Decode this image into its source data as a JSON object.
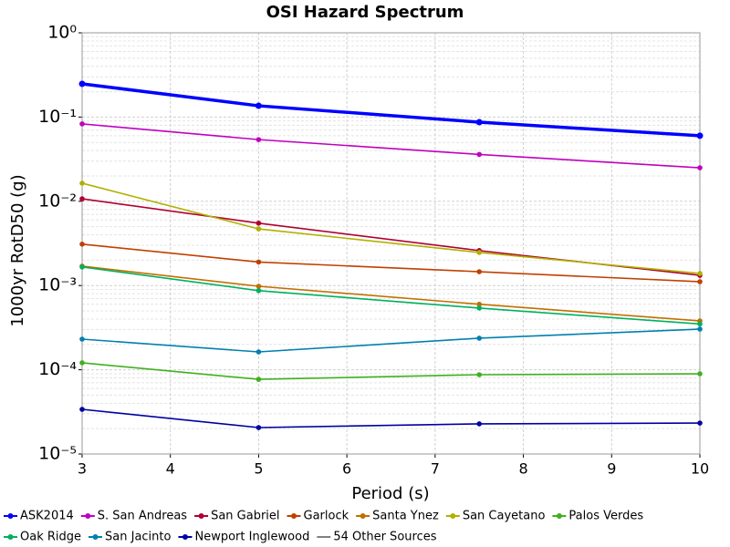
{
  "chart_data": {
    "type": "line",
    "title": "OSI Hazard Spectrum",
    "x_label": "Period (s)",
    "y_label": "1000yr RotD50 (g)",
    "y_log": true,
    "grid": true,
    "xlim": [
      3,
      10
    ],
    "xticks": [
      3,
      4,
      5,
      6,
      7,
      8,
      9,
      10
    ],
    "ylim": [
      1e-05,
      1
    ],
    "yticks": [
      {
        "value": 1,
        "label": "10⁰"
      },
      {
        "value": 0.1,
        "label": "10⁻¹"
      },
      {
        "value": 0.01,
        "label": "10⁻²"
      },
      {
        "value": 0.001,
        "label": "10⁻³"
      },
      {
        "value": 0.0001,
        "label": "10⁻⁴"
      },
      {
        "value": 1e-05,
        "label": "10⁻⁵"
      }
    ],
    "x": [
      3,
      5,
      7.5,
      10
    ],
    "series": [
      {
        "name": "ASK2014",
        "color": "#0000ff",
        "values": [
          0.248,
          0.136,
          0.087,
          0.06
        ]
      },
      {
        "name": "S. San Andreas",
        "color": "#c000c0",
        "values": [
          0.083,
          0.054,
          0.036,
          0.025
        ]
      },
      {
        "name": "San Gabriel",
        "color": "#b00030",
        "values": [
          0.0107,
          0.0055,
          0.0026,
          0.00132
        ]
      },
      {
        "name": "Garlock",
        "color": "#c04000",
        "values": [
          0.0031,
          0.0019,
          0.00146,
          0.00111
        ]
      },
      {
        "name": "Santa Ynez",
        "color": "#c07000",
        "values": [
          0.0017,
          0.00098,
          0.0006,
          0.00038
        ]
      },
      {
        "name": "San Cayetano",
        "color": "#b0b000",
        "values": [
          0.0164,
          0.0047,
          0.00247,
          0.00139
        ]
      },
      {
        "name": "Palos Verdes",
        "color": "#40b020",
        "values": [
          0.000121,
          7.7e-05,
          8.74e-05,
          8.96e-05
        ]
      },
      {
        "name": "Oak Ridge",
        "color": "#00b060",
        "values": [
          0.00166,
          0.00087,
          0.00054,
          0.00035
        ]
      },
      {
        "name": "San Jacinto",
        "color": "#0080b0",
        "values": [
          0.000231,
          0.000163,
          0.000237,
          0.000304
        ]
      },
      {
        "name": "Newport Inglewood",
        "color": "#0000a0",
        "values": [
          3.39e-05,
          2.06e-05,
          2.28e-05,
          2.33e-05
        ]
      },
      {
        "name": "54 Other Sources",
        "color": "#808080",
        "values": [
          null,
          null,
          null,
          null
        ]
      }
    ]
  }
}
